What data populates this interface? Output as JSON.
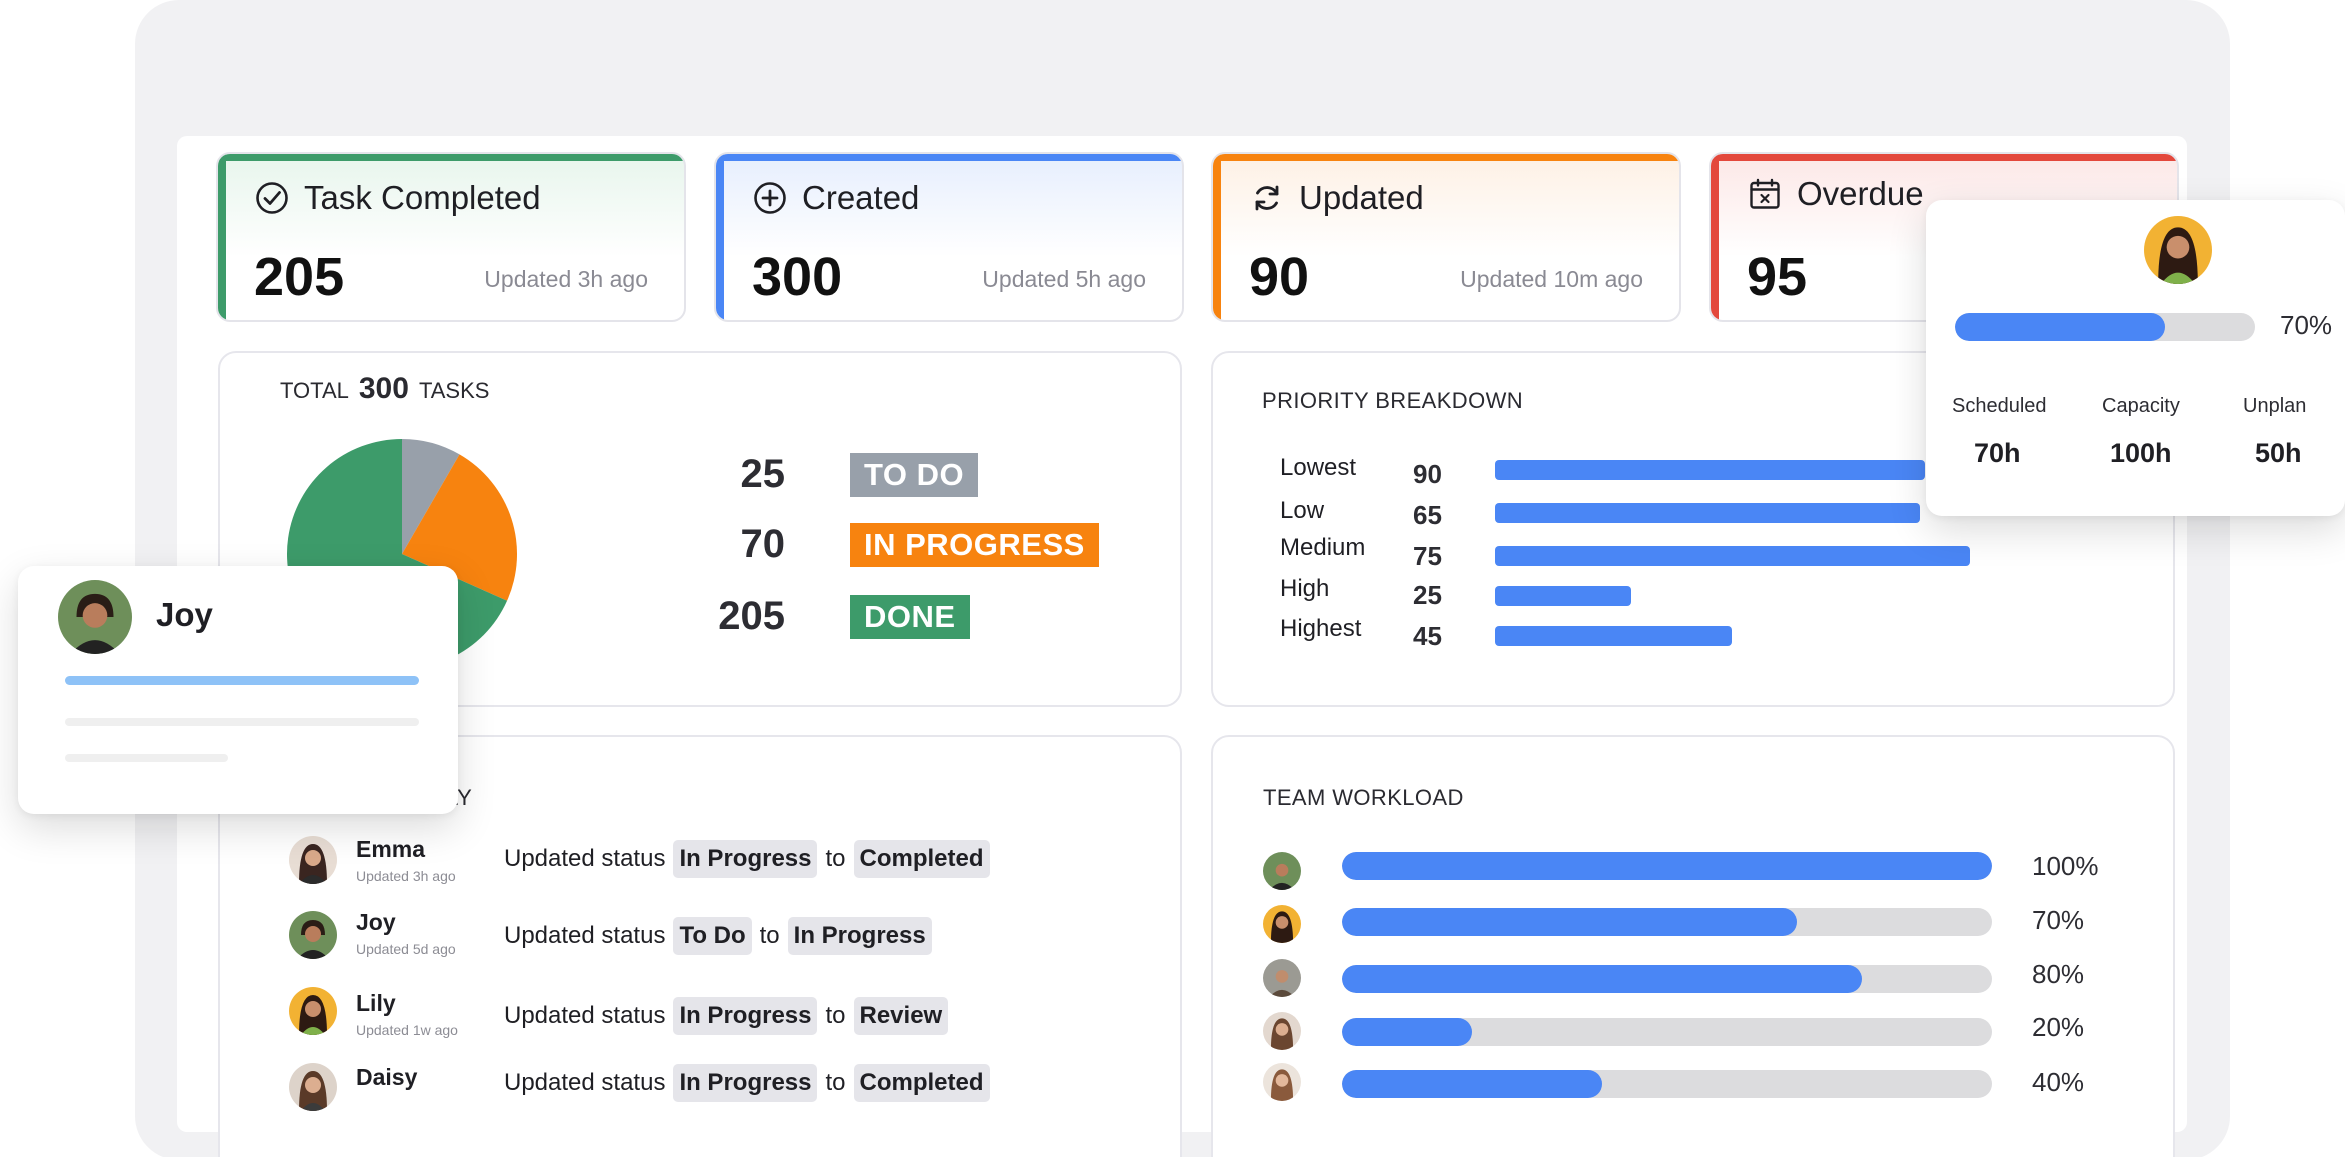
{
  "colors": {
    "green": "#3d9b6a",
    "blue": "#4a86f5",
    "orange": "#f7830f",
    "red": "#e3483c",
    "gray": "#98a0aa"
  },
  "stats": [
    {
      "title": "Task Completed",
      "value": "205",
      "updated": "Updated 3h ago",
      "icon": "check-circle-icon"
    },
    {
      "title": "Created",
      "value": "300",
      "updated": "Updated 5h ago",
      "icon": "plus-circle-icon"
    },
    {
      "title": "Updated",
      "value": "90",
      "updated": "Updated 10m ago",
      "icon": "refresh-icon"
    },
    {
      "title": "Overdue",
      "value": "95",
      "updated": "",
      "icon": "calendar-x-icon"
    }
  ],
  "total": {
    "prefix": "TOTAL",
    "count": "300",
    "suffix": "TASKS",
    "statuses": [
      {
        "count": "25",
        "label": "TO DO"
      },
      {
        "count": "70",
        "label": "IN PROGRESS"
      },
      {
        "count": "205",
        "label": "DONE"
      }
    ]
  },
  "chart_data": {
    "type": "pie",
    "categories": [
      "TO DO",
      "IN PROGRESS",
      "DONE"
    ],
    "values": [
      25,
      70,
      205
    ]
  },
  "priority": {
    "title": "PRIORITY BREAKDOWN",
    "rows": [
      {
        "label": "Lowest",
        "value": "90"
      },
      {
        "label": "Low",
        "value": "65"
      },
      {
        "label": "Medium",
        "value": "75"
      },
      {
        "label": "High",
        "value": "25"
      },
      {
        "label": "Highest",
        "value": "45"
      }
    ]
  },
  "recent": {
    "title_visible": "NTLY",
    "items": [
      {
        "name": "Emma",
        "time": "Updated 3h ago",
        "action": "Updated status",
        "from": "In Progress",
        "to_word": "to",
        "to": "Completed"
      },
      {
        "name": "Joy",
        "time": "Updated 5d ago",
        "action": "Updated status",
        "from": "To Do",
        "to_word": "to",
        "to": "In Progress"
      },
      {
        "name": "Lily",
        "time": "Updated 1w ago",
        "action": "Updated status",
        "from": "In Progress",
        "to_word": "to",
        "to": "Review"
      },
      {
        "name": "Daisy",
        "time": "",
        "action": "Updated status",
        "from": "In Progress",
        "to_word": "to",
        "to": "Completed"
      }
    ]
  },
  "workload": {
    "title": "TEAM WORKLOAD",
    "rows": [
      {
        "percent": 100,
        "label": "100%"
      },
      {
        "percent": 70,
        "label": "70%"
      },
      {
        "percent": 80,
        "label": "80%"
      },
      {
        "percent": 20,
        "label": "20%"
      },
      {
        "percent": 40,
        "label": "40%"
      }
    ]
  },
  "joy_card": {
    "name": "Joy"
  },
  "capacity_card": {
    "percent": 70,
    "percent_label": "70%",
    "stats": [
      {
        "label": "Scheduled",
        "value": "70h"
      },
      {
        "label": "Capacity",
        "value": "100h"
      },
      {
        "label": "Unplan",
        "value": "50h"
      }
    ]
  }
}
